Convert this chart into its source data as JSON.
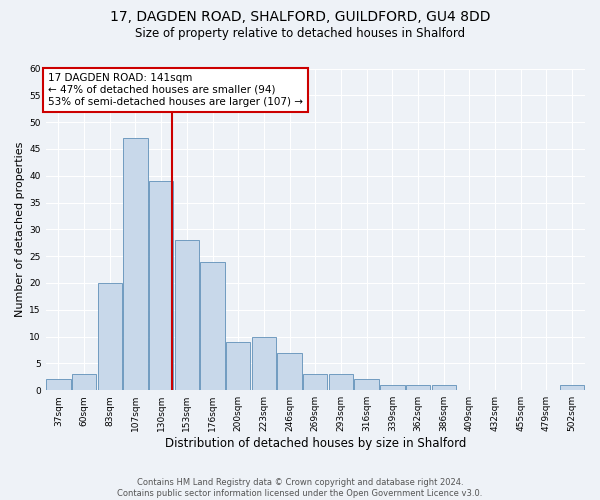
{
  "title_line1": "17, DAGDEN ROAD, SHALFORD, GUILDFORD, GU4 8DD",
  "title_line2": "Size of property relative to detached houses in Shalford",
  "xlabel": "Distribution of detached houses by size in Shalford",
  "ylabel": "Number of detached properties",
  "bin_labels": [
    "37sqm",
    "60sqm",
    "83sqm",
    "107sqm",
    "130sqm",
    "153sqm",
    "176sqm",
    "200sqm",
    "223sqm",
    "246sqm",
    "269sqm",
    "293sqm",
    "316sqm",
    "339sqm",
    "362sqm",
    "386sqm",
    "409sqm",
    "432sqm",
    "455sqm",
    "479sqm",
    "502sqm"
  ],
  "bar_heights": [
    2,
    3,
    20,
    47,
    39,
    28,
    24,
    9,
    10,
    7,
    3,
    3,
    2,
    1,
    1,
    1,
    0,
    0,
    0,
    0,
    1
  ],
  "bar_color": "#c8d8ea",
  "bar_edge_color": "#6090b8",
  "vline_x_index": 3.5,
  "vline_color": "#cc0000",
  "annotation_text": "17 DAGDEN ROAD: 141sqm\n← 47% of detached houses are smaller (94)\n53% of semi-detached houses are larger (107) →",
  "annotation_box_color": "#ffffff",
  "annotation_box_edge_color": "#cc0000",
  "footer_line1": "Contains HM Land Registry data © Crown copyright and database right 2024.",
  "footer_line2": "Contains public sector information licensed under the Open Government Licence v3.0.",
  "ylim": [
    0,
    60
  ],
  "yticks": [
    0,
    5,
    10,
    15,
    20,
    25,
    30,
    35,
    40,
    45,
    50,
    55,
    60
  ],
  "background_color": "#eef2f7",
  "plot_bg_color": "#eef2f7",
  "title_fontsize": 10,
  "subtitle_fontsize": 8.5,
  "ylabel_fontsize": 8,
  "xlabel_fontsize": 8.5,
  "footer_fontsize": 6,
  "annot_fontsize": 7.5,
  "tick_fontsize": 6.5
}
